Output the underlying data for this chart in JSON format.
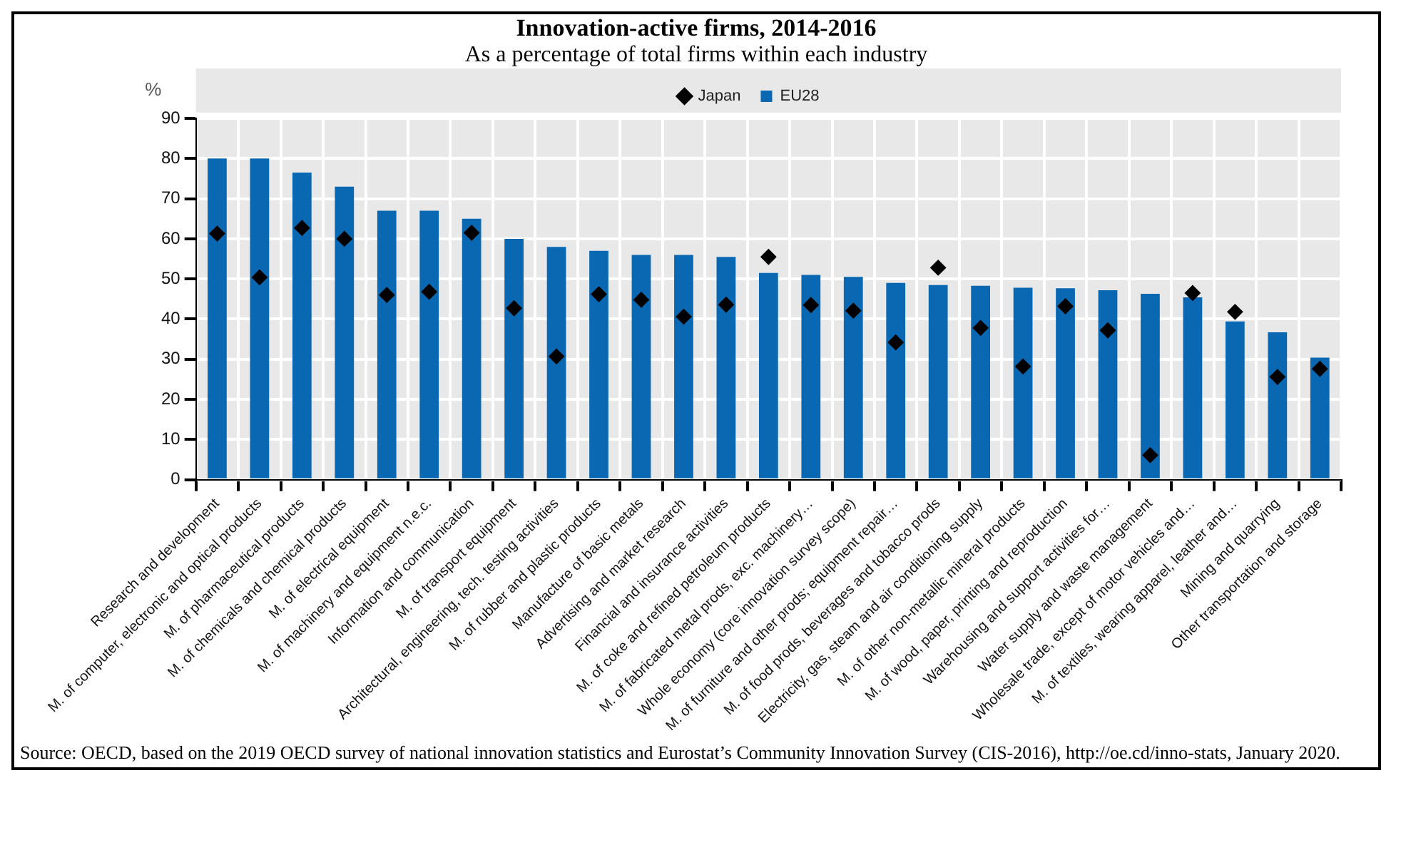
{
  "chart_data": {
    "type": "bar",
    "title": "Innovation-active firms, 2014-2016",
    "subtitle": "As a percentage of total firms within each industry",
    "ylabel": "%",
    "categories": [
      "Research and development",
      "M. of computer, electronic and optical products",
      "M. of pharmaceutical products",
      "M. of chemicals and chemical products",
      "M. of electrical equipment",
      "M. of machinery and equipment n.e.c.",
      "Information and communication",
      "M. of transport equipment",
      "Architectural, engineering, tech. testing activities",
      "M. of rubber and plastic products",
      "Manufacture of basic metals",
      "Advertising and market research",
      "Financial and insurance activities",
      "M. of coke and refined petroleum products",
      "M. of fabricated metal prods, exc. machinery…",
      "Whole economy (core innovation survey scope)",
      "M. of furniture and other prods; equipment repair…",
      "M. of food prods, beverages and tobacco prods",
      "Electricity, gas, steam and air conditioning supply",
      "M. of other non-metallic mineral products",
      "M. of wood, paper, printing and reproduction",
      "Warehousing and support activities for…",
      "Water supply and waste management",
      "Wholesale trade, except of motor vehicles and…",
      "M. of textiles, wearing apparel, leather and…",
      "Mining and quarrying",
      "Other transportation and storage"
    ],
    "series": [
      {
        "name": "EU28",
        "color": "#0a68b2",
        "values": [
          80,
          80,
          76.5,
          73,
          67,
          67,
          65,
          60,
          58,
          57,
          56,
          56,
          55.5,
          51.5,
          51,
          50.5,
          49,
          48.5,
          48.3,
          47.8,
          47.7,
          47.2,
          46.3,
          45.4,
          39.4,
          36.7,
          30.4
        ]
      },
      {
        "name": "Japan",
        "type": "scatter",
        "color": "#000000",
        "x": [
          "Research and development",
          "M. of computer, electronic and optical products",
          "M. of pharmaceutical products",
          "M. of chemicals and chemical products",
          "M. of electrical equipment",
          "M. of machinery and equipment n.e.c.",
          "Information and communication",
          "M. of transport equipment",
          "Architectural, engineering, tech. testing activities",
          "M. of rubber and plastic products",
          "Manufacture of basic metals",
          "Advertising and market research",
          "Financial and insurance activities",
          "M. of coke and refined petroleum products",
          "M. of fabricated metal prods, exc. machinery…",
          "Whole economy (core innovation survey scope)",
          "M. of furniture and other prods; equipment repair…",
          "M. of food prods, beverages and tobacco prods",
          "Electricity, gas, steam and air conditioning supply",
          "M. of other non-metallic mineral products",
          "M. of wood, paper, printing and reproduction",
          "Warehousing and support activities for…",
          "Water supply and waste management",
          "Wholesale trade, except of motor vehicles and…",
          "M. of textiles, wearing apparel, leather and…",
          "Mining and quarrying",
          "Other transportation and storage"
        ],
        "values": [
          61.3,
          50.4,
          62.7,
          60,
          46,
          46.8,
          61.5,
          42.7,
          30.7,
          46.2,
          44.8,
          40.6,
          43.6,
          55.5,
          43.5,
          42.1,
          34.2,
          52.8,
          37.8,
          28.2,
          43.2,
          37.2,
          6.1,
          46.5,
          41.8,
          25.6,
          27.6
        ],
        "marker": "diamond"
      }
    ],
    "ylim": [
      0,
      90
    ],
    "yticks": [
      0,
      10,
      20,
      30,
      40,
      50,
      60,
      70,
      80,
      90
    ],
    "grid": true,
    "legend": "top",
    "annotations": [
      "Source: OECD, based on the 2019 OECD survey of national innovation statistics and Eurostat’s Community Innovation Survey (CIS-2016), http://oe.cd/inno-stats, January 2020."
    ]
  }
}
